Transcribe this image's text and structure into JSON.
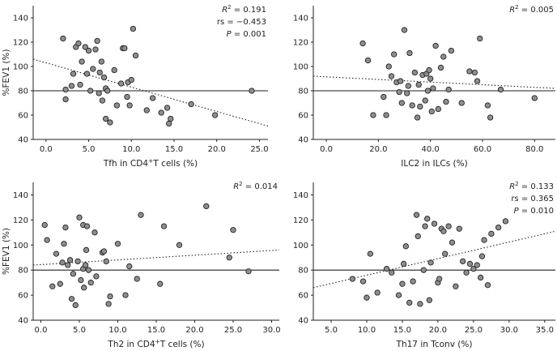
{
  "chart_data": [
    {
      "type": "scatter",
      "title": "",
      "xlabel": "Tfh in CD4",
      "xlabel_sup": "+",
      "xlabel_rest": "T cells (%)",
      "ylabel": "%FEV1 (%)",
      "xlim": [
        -1.5,
        26
      ],
      "ylim": [
        40,
        150
      ],
      "xticks": [
        "0.0",
        "5.0",
        "10.0",
        "15.0",
        "20.0",
        "25.0"
      ],
      "xtick_values": [
        0,
        5,
        10,
        15,
        20,
        25
      ],
      "yticks": [
        "40",
        "60",
        "80",
        "100",
        "120",
        "140"
      ],
      "ytick_values": [
        40,
        60,
        80,
        100,
        120,
        140
      ],
      "reference_line_y": 80,
      "trend_line": {
        "x": [
          -1.5,
          26
        ],
        "y": [
          106,
          51
        ]
      },
      "annotations": [
        {
          "prefix": "R",
          "sup": "2",
          "rest": " = 0.191"
        },
        {
          "prefix": "rs = −0.453",
          "sup": "",
          "rest": ""
        },
        {
          "prefix": "P = 0.001",
          "sup": "",
          "rest": "",
          "italic": true
        }
      ],
      "points": {
        "x": [
          2.0,
          2.3,
          2.3,
          3.0,
          3.2,
          3.5,
          3.8,
          4.0,
          4.2,
          4.6,
          4.8,
          5.0,
          5.2,
          5.5,
          5.8,
          6.0,
          6.2,
          6.3,
          6.5,
          6.6,
          6.8,
          7.0,
          7.0,
          7.2,
          7.5,
          8.0,
          8.3,
          8.8,
          9.0,
          9.2,
          9.5,
          9.6,
          9.8,
          10.0,
          10.2,
          10.5,
          11.8,
          12.5,
          13.5,
          14.2,
          14.4,
          14.6,
          17.0,
          19.8,
          24.1
        ],
        "y": [
          123,
          81,
          73,
          84,
          94,
          116,
          119,
          85,
          104,
          116,
          94,
          113,
          80,
          98,
          114,
          121,
          78,
          95,
          104,
          72,
          91,
          82,
          57,
          80,
          54,
          97,
          68,
          86,
          115,
          115,
          75,
          87,
          68,
          89,
          131,
          109,
          64,
          74,
          62,
          66,
          53,
          57,
          69,
          60,
          80
        ]
      }
    },
    {
      "type": "scatter",
      "title": "",
      "xlabel": "ILC2 in ILCs (%)",
      "xlabel_sup": "",
      "xlabel_rest": "",
      "ylabel": "",
      "xlim": [
        -5,
        88
      ],
      "ylim": [
        40,
        150
      ],
      "xticks": [
        "0.0",
        "20.0",
        "40.0",
        "60.0",
        "80.0"
      ],
      "xtick_values": [
        0,
        20,
        40,
        60,
        80
      ],
      "yticks": [
        "40",
        "60",
        "80",
        "100",
        "120",
        "140"
      ],
      "ytick_values": [
        40,
        60,
        80,
        100,
        120,
        140
      ],
      "reference_line_y": 80,
      "trend_line": {
        "x": [
          -5,
          88
        ],
        "y": [
          92,
          82
        ]
      },
      "annotations": [
        {
          "prefix": "R",
          "sup": "2",
          "rest": " = 0.005"
        }
      ],
      "points": {
        "x": [
          14.0,
          16.0,
          18.0,
          22.0,
          23.0,
          24.0,
          25.0,
          26.0,
          27.0,
          28.0,
          28.5,
          29.0,
          30.0,
          31.0,
          31.5,
          32.0,
          33.0,
          34.0,
          35.0,
          35.5,
          36.0,
          37.0,
          38.0,
          38.5,
          39.0,
          39.5,
          40.0,
          40.5,
          41.0,
          42.0,
          43.0,
          44.0,
          45.0,
          46.0,
          47.0,
          48.0,
          52.0,
          55.0,
          57.0,
          58.0,
          59.0,
          62.0,
          63.0,
          67.0,
          80.0
        ],
        "y": [
          119,
          105,
          60,
          75,
          60,
          100,
          92,
          110,
          87,
          79,
          88,
          70,
          130,
          78,
          84,
          111,
          68,
          95,
          58,
          85,
          67,
          93,
          72,
          94,
          80,
          97,
          90,
          63,
          82,
          117,
          65,
          99,
          108,
          71,
          81,
          113,
          70,
          96,
          95,
          88,
          123,
          68,
          58,
          81,
          74
        ]
      }
    },
    {
      "type": "scatter",
      "title": "",
      "xlabel": "Th2 in CD4",
      "xlabel_sup": "+",
      "xlabel_rest": "T cells (%)",
      "ylabel": "%FEV1 (%)",
      "xlim": [
        -1,
        31
      ],
      "ylim": [
        40,
        150
      ],
      "xticks": [
        "0.0",
        "5.0",
        "10.0",
        "15.0",
        "20.0",
        "25.0",
        "30.0"
      ],
      "xtick_values": [
        0,
        5,
        10,
        15,
        20,
        25,
        30
      ],
      "yticks": [
        "40",
        "60",
        "80",
        "100",
        "120",
        "140"
      ],
      "ytick_values": [
        40,
        60,
        80,
        100,
        120,
        140
      ],
      "reference_line_y": 80,
      "trend_line": {
        "x": [
          -1,
          31
        ],
        "y": [
          84,
          96
        ]
      },
      "annotations": [
        {
          "prefix": "R",
          "sup": "2",
          "rest": " = 0.014"
        }
      ],
      "points": {
        "x": [
          0.5,
          0.8,
          1.5,
          2.0,
          2.5,
          2.8,
          3.0,
          3.2,
          3.5,
          3.8,
          4.0,
          4.2,
          4.5,
          4.8,
          5.0,
          5.2,
          5.5,
          5.5,
          5.6,
          5.8,
          5.9,
          6.0,
          6.2,
          6.5,
          7.0,
          7.2,
          8.0,
          8.2,
          8.5,
          8.8,
          9.0,
          10.0,
          11.0,
          11.5,
          12.5,
          13.0,
          15.5,
          16.0,
          18.0,
          21.5,
          24.5,
          25.0,
          27.0
        ],
        "y": [
          116,
          104,
          67,
          93,
          69,
          86,
          101,
          114,
          84,
          88,
          57,
          77,
          52,
          87,
          122,
          72,
          116,
          81,
          66,
          84,
          96,
          115,
          80,
          70,
          110,
          75,
          94,
          95,
          87,
          53,
          59,
          101,
          60,
          83,
          73,
          124,
          69,
          115,
          100,
          131,
          90,
          112,
          79
        ]
      }
    },
    {
      "type": "scatter",
      "title": "",
      "xlabel": "Th17 in Tconv (%)",
      "xlabel_sup": "",
      "xlabel_rest": "",
      "ylabel": "",
      "xlim": [
        2.5,
        36.5
      ],
      "ylim": [
        40,
        150
      ],
      "xticks": [
        "5.0",
        "10.0",
        "15.0",
        "20.0",
        "25.0",
        "30.0",
        "35.0"
      ],
      "xtick_values": [
        5,
        10,
        15,
        20,
        25,
        30,
        35
      ],
      "yticks": [
        "40",
        "60",
        "80",
        "100",
        "120",
        "140"
      ],
      "ytick_values": [
        40,
        60,
        80,
        100,
        120,
        140
      ],
      "reference_line_y": 80,
      "trend_line": {
        "x": [
          2.5,
          36.5
        ],
        "y": [
          66,
          111
        ]
      },
      "annotations": [
        {
          "prefix": "R",
          "sup": "2",
          "rest": " = 0.133"
        },
        {
          "prefix": "rs = 0.365",
          "sup": "",
          "rest": ""
        },
        {
          "prefix": "P = 0.010",
          "sup": "",
          "rest": "",
          "italic": true
        }
      ],
      "points": {
        "x": [
          8.0,
          9.5,
          10.0,
          10.5,
          11.5,
          12.8,
          13.5,
          14.5,
          15.0,
          15.2,
          15.5,
          16.0,
          16.5,
          17.0,
          17.2,
          17.5,
          18.0,
          18.2,
          18.5,
          18.8,
          19.0,
          19.5,
          20.0,
          20.2,
          20.5,
          20.8,
          21.0,
          21.5,
          22.0,
          22.5,
          23.0,
          23.5,
          24.0,
          24.5,
          25.0,
          25.5,
          26.0,
          26.2,
          26.5,
          27.0,
          27.5,
          28.5,
          29.5
        ],
        "y": [
          73,
          71,
          58,
          93,
          62,
          81,
          78,
          60,
          69,
          85,
          99,
          54,
          71,
          124,
          107,
          53,
          80,
          115,
          121,
          56,
          86,
          117,
          70,
          73,
          113,
          111,
          93,
          115,
          102,
          67,
          113,
          87,
          78,
          85,
          81,
          84,
          74,
          91,
          104,
          68,
          109,
          114,
          119
        ]
      }
    }
  ]
}
